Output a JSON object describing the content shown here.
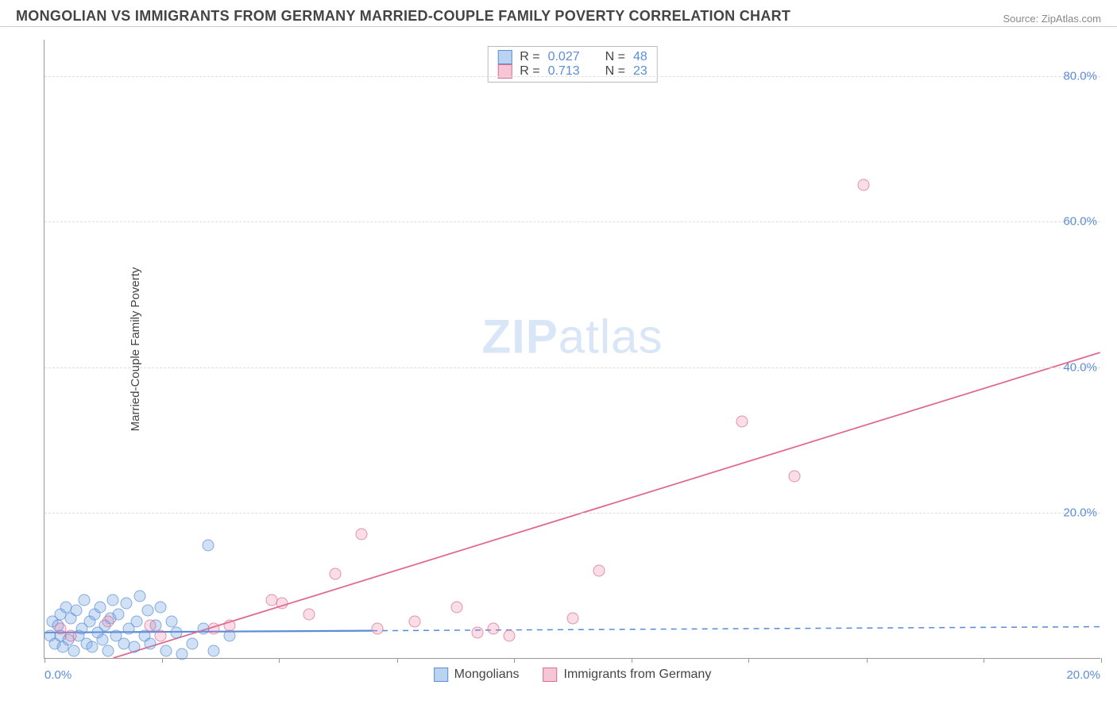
{
  "title": "MONGOLIAN VS IMMIGRANTS FROM GERMANY MARRIED-COUPLE FAMILY POVERTY CORRELATION CHART",
  "source": "Source: ZipAtlas.com",
  "watermark_bold": "ZIP",
  "watermark_light": "atlas",
  "y_axis_label": "Married-Couple Family Poverty",
  "chart": {
    "type": "scatter",
    "background_color": "#ffffff",
    "grid_color": "#dddddd",
    "axis_color": "#999999",
    "text_color": "#444444",
    "value_color": "#5b8dd6",
    "xlim": [
      0,
      20
    ],
    "ylim": [
      0,
      85
    ],
    "x_ticks": [
      0,
      2.22,
      4.44,
      6.67,
      8.89,
      11.11,
      13.33,
      15.56,
      17.78,
      20
    ],
    "x_tick_labels": {
      "left": "0.0%",
      "right": "20.0%"
    },
    "y_ticks": [
      20,
      40,
      60,
      80
    ],
    "y_tick_labels": [
      "20.0%",
      "40.0%",
      "60.0%",
      "80.0%"
    ],
    "marker_size": 15,
    "marker_opacity": 0.75,
    "series": [
      {
        "key": "a",
        "name": "Mongolians",
        "color_fill": "rgba(118,167,225,0.45)",
        "color_stroke": "#5b8dd6",
        "R_label": "R =",
        "R": "0.027",
        "N_label": "N =",
        "N": "48",
        "trend": {
          "x1": 0,
          "y1": 3.5,
          "x2": 20,
          "y2": 4.3,
          "solid_until_x": 6.2,
          "stroke_width": 2.2
        },
        "points": [
          [
            0.1,
            3.0
          ],
          [
            0.15,
            5.0
          ],
          [
            0.2,
            2.0
          ],
          [
            0.25,
            4.5
          ],
          [
            0.3,
            6.0
          ],
          [
            0.3,
            3.0
          ],
          [
            0.35,
            1.5
          ],
          [
            0.4,
            7.0
          ],
          [
            0.45,
            2.5
          ],
          [
            0.5,
            5.5
          ],
          [
            0.55,
            1.0
          ],
          [
            0.6,
            6.5
          ],
          [
            0.65,
            3.0
          ],
          [
            0.7,
            4.0
          ],
          [
            0.75,
            8.0
          ],
          [
            0.8,
            2.0
          ],
          [
            0.85,
            5.0
          ],
          [
            0.9,
            1.5
          ],
          [
            0.95,
            6.0
          ],
          [
            1.0,
            3.5
          ],
          [
            1.05,
            7.0
          ],
          [
            1.1,
            2.5
          ],
          [
            1.15,
            4.5
          ],
          [
            1.2,
            1.0
          ],
          [
            1.25,
            5.5
          ],
          [
            1.3,
            8.0
          ],
          [
            1.35,
            3.0
          ],
          [
            1.4,
            6.0
          ],
          [
            1.5,
            2.0
          ],
          [
            1.55,
            7.5
          ],
          [
            1.6,
            4.0
          ],
          [
            1.7,
            1.5
          ],
          [
            1.75,
            5.0
          ],
          [
            1.8,
            8.5
          ],
          [
            1.9,
            3.0
          ],
          [
            1.95,
            6.5
          ],
          [
            2.0,
            2.0
          ],
          [
            2.1,
            4.5
          ],
          [
            2.2,
            7.0
          ],
          [
            2.3,
            1.0
          ],
          [
            2.4,
            5.0
          ],
          [
            2.5,
            3.5
          ],
          [
            2.6,
            0.5
          ],
          [
            2.8,
            2.0
          ],
          [
            3.0,
            4.0
          ],
          [
            3.1,
            15.5
          ],
          [
            3.2,
            1.0
          ],
          [
            3.5,
            3.0
          ]
        ]
      },
      {
        "key": "b",
        "name": "Immigrants from Germany",
        "color_fill": "rgba(231,128,163,0.35)",
        "color_stroke": "#e06a93",
        "R_label": "R =",
        "R": "0.713",
        "N_label": "N =",
        "N": "23",
        "trend": {
          "x1": 1.3,
          "y1": 0,
          "x2": 20,
          "y2": 42,
          "solid_until_x": 20,
          "stroke_width": 1.8
        },
        "points": [
          [
            0.3,
            4.0
          ],
          [
            0.5,
            3.0
          ],
          [
            1.2,
            5.0
          ],
          [
            2.0,
            4.5
          ],
          [
            2.2,
            3.0
          ],
          [
            3.2,
            4.0
          ],
          [
            3.5,
            4.5
          ],
          [
            4.3,
            8.0
          ],
          [
            4.5,
            7.5
          ],
          [
            5.0,
            6.0
          ],
          [
            5.5,
            11.5
          ],
          [
            6.0,
            17.0
          ],
          [
            6.3,
            4.0
          ],
          [
            7.0,
            5.0
          ],
          [
            7.8,
            7.0
          ],
          [
            8.2,
            3.5
          ],
          [
            8.5,
            4.0
          ],
          [
            8.8,
            3.0
          ],
          [
            10.0,
            5.5
          ],
          [
            10.5,
            12.0
          ],
          [
            13.2,
            32.5
          ],
          [
            14.2,
            25.0
          ],
          [
            15.5,
            65.0
          ]
        ]
      }
    ]
  }
}
